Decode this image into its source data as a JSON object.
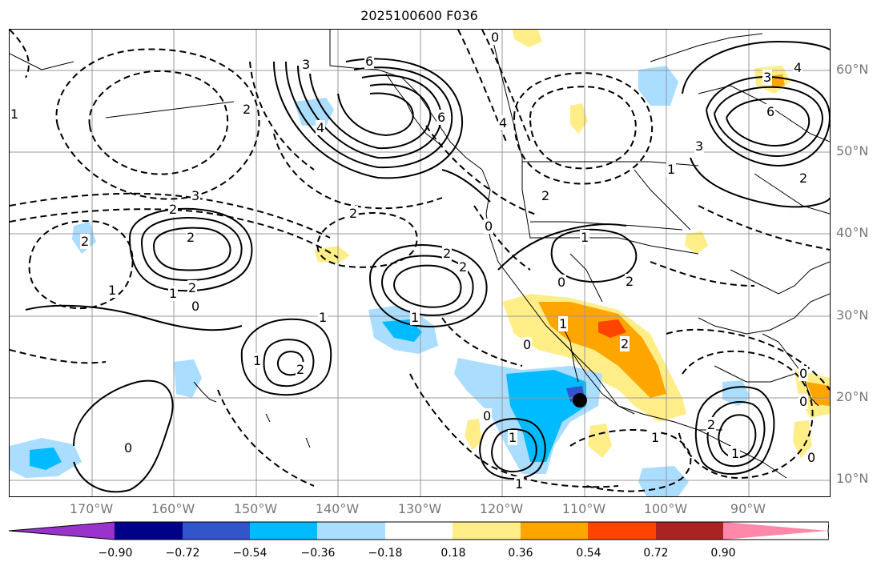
{
  "title": "2025100600 F036",
  "lat_labels": [
    "60°N",
    "50°N",
    "40°N",
    "30°N",
    "20°N",
    "10°N"
  ],
  "lon_labels": [
    "170°W",
    "160°W",
    "150°W",
    "140°W",
    "130°W",
    "120°W",
    "110°W",
    "100°W",
    "90°W"
  ],
  "colorbar": {
    "colors": [
      "#9933cc",
      "#000088",
      "#3355cc",
      "#00bbff",
      "#aaddff",
      "#ffffff",
      "#ffee88",
      "#ffa500",
      "#ff4400",
      "#aa2222",
      "#ff88aa"
    ],
    "labels": [
      "−0.90",
      "−0.72",
      "−0.54",
      "−0.36",
      "−0.18",
      "0.18",
      "0.36",
      "0.54",
      "0.72",
      "0.90"
    ]
  },
  "contour_labels": [
    "6",
    "3",
    "4",
    "6",
    "4",
    "3",
    "2",
    "0",
    "2",
    "1",
    "0",
    "2",
    "2",
    "1",
    "1",
    "2",
    "0",
    "2",
    "1",
    "0",
    "2",
    "3",
    "1",
    "1",
    "0",
    "2",
    "1",
    "4",
    "6",
    "2",
    "2",
    "3",
    "0",
    "2",
    "1",
    "0",
    "1",
    "0",
    "1",
    "2",
    "2",
    "1",
    "1",
    "2",
    "1",
    "0",
    "0",
    "1"
  ],
  "marker": "storm-center-dot"
}
